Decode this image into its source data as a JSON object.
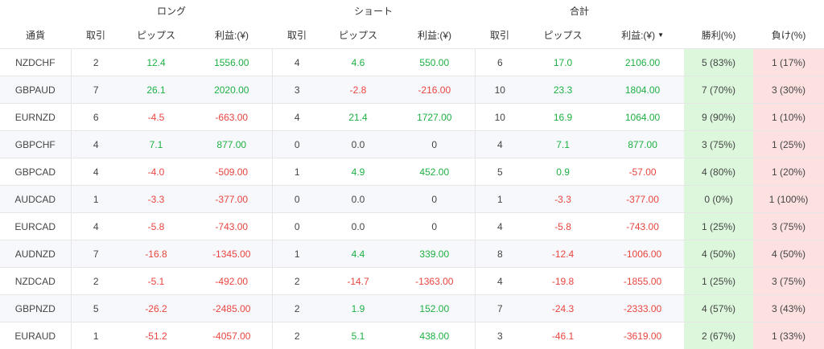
{
  "groups": {
    "long": "ロング",
    "short": "ショート",
    "total": "合計"
  },
  "headers": {
    "pair": "通貨",
    "long_trades": "取引",
    "long_pips": "ピップス",
    "long_profit": "利益:(¥)",
    "short_trades": "取引",
    "short_pips": "ピップス",
    "short_profit": "利益:(¥)",
    "total_trades": "取引",
    "total_pips": "ピップス",
    "total_profit": "利益:(¥)",
    "win": "勝利(%)",
    "lose": "負け(%)"
  },
  "sort_icon": "▼",
  "rows": [
    {
      "pair": "NZDCHF",
      "lt": "2",
      "lp": "12.4",
      "lpr": "1556.00",
      "st": "4",
      "sp": "4.6",
      "spr": "550.00",
      "tt": "6",
      "tp": "17.0",
      "tpr": "2106.00",
      "win": "5 (83%)",
      "lose": "1 (17%)"
    },
    {
      "pair": "GBPAUD",
      "lt": "7",
      "lp": "26.1",
      "lpr": "2020.00",
      "st": "3",
      "sp": "-2.8",
      "spr": "-216.00",
      "tt": "10",
      "tp": "23.3",
      "tpr": "1804.00",
      "win": "7 (70%)",
      "lose": "3 (30%)"
    },
    {
      "pair": "EURNZD",
      "lt": "6",
      "lp": "-4.5",
      "lpr": "-663.00",
      "st": "4",
      "sp": "21.4",
      "spr": "1727.00",
      "tt": "10",
      "tp": "16.9",
      "tpr": "1064.00",
      "win": "9 (90%)",
      "lose": "1 (10%)"
    },
    {
      "pair": "GBPCHF",
      "lt": "4",
      "lp": "7.1",
      "lpr": "877.00",
      "st": "0",
      "sp": "0.0",
      "spr": "0",
      "tt": "4",
      "tp": "7.1",
      "tpr": "877.00",
      "win": "3 (75%)",
      "lose": "1 (25%)"
    },
    {
      "pair": "GBPCAD",
      "lt": "4",
      "lp": "-4.0",
      "lpr": "-509.00",
      "st": "1",
      "sp": "4.9",
      "spr": "452.00",
      "tt": "5",
      "tp": "0.9",
      "tpr": "-57.00",
      "win": "4 (80%)",
      "lose": "1 (20%)"
    },
    {
      "pair": "AUDCAD",
      "lt": "1",
      "lp": "-3.3",
      "lpr": "-377.00",
      "st": "0",
      "sp": "0.0",
      "spr": "0",
      "tt": "1",
      "tp": "-3.3",
      "tpr": "-377.00",
      "win": "0 (0%)",
      "lose": "1 (100%)"
    },
    {
      "pair": "EURCAD",
      "lt": "4",
      "lp": "-5.8",
      "lpr": "-743.00",
      "st": "0",
      "sp": "0.0",
      "spr": "0",
      "tt": "4",
      "tp": "-5.8",
      "tpr": "-743.00",
      "win": "1 (25%)",
      "lose": "3 (75%)"
    },
    {
      "pair": "AUDNZD",
      "lt": "7",
      "lp": "-16.8",
      "lpr": "-1345.00",
      "st": "1",
      "sp": "4.4",
      "spr": "339.00",
      "tt": "8",
      "tp": "-12.4",
      "tpr": "-1006.00",
      "win": "4 (50%)",
      "lose": "4 (50%)"
    },
    {
      "pair": "NZDCAD",
      "lt": "2",
      "lp": "-5.1",
      "lpr": "-492.00",
      "st": "2",
      "sp": "-14.7",
      "spr": "-1363.00",
      "tt": "4",
      "tp": "-19.8",
      "tpr": "-1855.00",
      "win": "1 (25%)",
      "lose": "3 (75%)"
    },
    {
      "pair": "GBPNZD",
      "lt": "5",
      "lp": "-26.2",
      "lpr": "-2485.00",
      "st": "2",
      "sp": "1.9",
      "spr": "152.00",
      "tt": "7",
      "tp": "-24.3",
      "tpr": "-2333.00",
      "win": "4 (57%)",
      "lose": "3 (43%)"
    },
    {
      "pair": "EURAUD",
      "lt": "1",
      "lp": "-51.2",
      "lpr": "-4057.00",
      "st": "2",
      "sp": "5.1",
      "spr": "438.00",
      "tt": "3",
      "tp": "-46.1",
      "tpr": "-3619.00",
      "win": "2 (67%)",
      "lose": "1 (33%)"
    }
  ],
  "colors": {
    "positive": "#1db043",
    "negative": "#e9453f",
    "win_bg": "#dcf7dc",
    "lose_bg": "#fde0e0"
  }
}
